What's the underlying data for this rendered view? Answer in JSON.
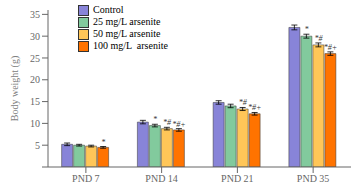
{
  "chart_data": {
    "type": "bar",
    "categories": [
      "PND 7",
      "PND 14",
      "PND 21",
      "PND 35"
    ],
    "series": [
      {
        "name": "Control",
        "color": "#8884d8",
        "values": [
          5.2,
          10.3,
          14.8,
          32.0
        ],
        "errors": [
          0.3,
          0.4,
          0.4,
          0.55
        ],
        "annotations": [
          null,
          null,
          null,
          null
        ]
      },
      {
        "name": "25 mg/L arsenite",
        "color": "#82ca9d",
        "values": [
          5.0,
          9.5,
          14.0,
          30.0
        ],
        "errors": [
          0.2,
          0.3,
          0.4,
          0.45
        ],
        "annotations": [
          null,
          "*",
          null,
          "*"
        ]
      },
      {
        "name": "50 mg/L arsenite",
        "color": "#ffc658",
        "values": [
          4.8,
          8.8,
          13.3,
          28.0
        ],
        "errors": [
          0.2,
          0.3,
          0.35,
          0.45
        ],
        "annotations": [
          null,
          "*#",
          "*#",
          "*#"
        ]
      },
      {
        "name": "100 mg/L  arsenite",
        "color": "#ff7300",
        "values": [
          4.5,
          8.5,
          12.2,
          26.0
        ],
        "errors": [
          0.2,
          0.3,
          0.3,
          0.4
        ],
        "annotations": [
          "*",
          "*#+",
          "*#+",
          "*#+"
        ]
      }
    ],
    "y_label": "Body weight (g)",
    "ylim": [
      0,
      36
    ],
    "yticks": [
      {
        "value": 0,
        "label": ""
      },
      5,
      10,
      15,
      20,
      25,
      30,
      35
    ],
    "grid": false,
    "legend": "upper left"
  }
}
